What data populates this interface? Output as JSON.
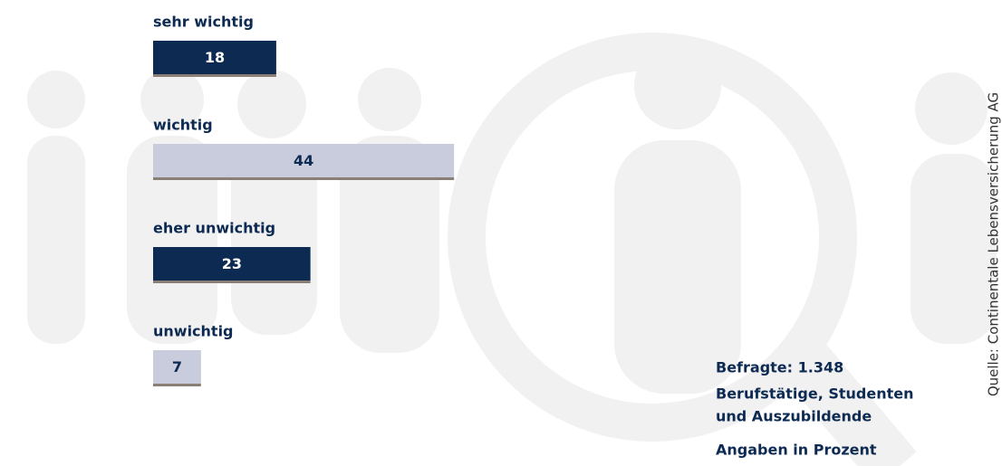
{
  "chart_data": {
    "type": "bar",
    "orientation": "horizontal",
    "categories": [
      "sehr wichtig",
      "wichtig",
      "eher unwichtig",
      "unwichtig"
    ],
    "values": [
      18,
      44,
      23,
      7
    ],
    "colors": [
      "#0d2a52",
      "#c9ccdd",
      "#0d2a52",
      "#c9ccdd"
    ],
    "notes": [
      "Befragte: 1.348",
      "Berufstätige, Studenten",
      "und Auszubildende",
      "Angaben in Prozent"
    ],
    "source": "Quelle: Continentale Lebensversicherung AG"
  }
}
